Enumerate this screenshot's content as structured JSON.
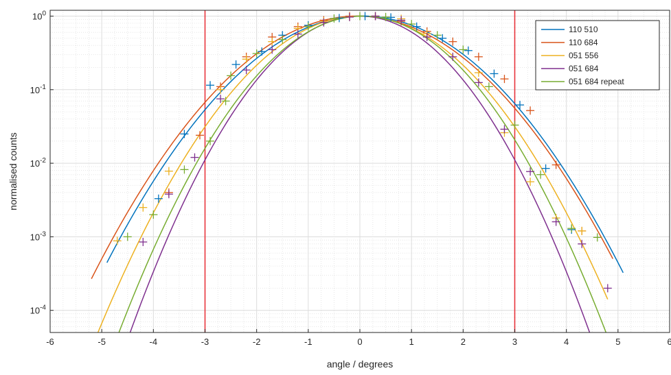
{
  "chart_data": {
    "type": "scatter",
    "xlabel": "angle / degrees",
    "ylabel": "normalised counts",
    "xlim": [
      -6,
      6
    ],
    "ylim": [
      5e-05,
      1.2
    ],
    "yscale": "log",
    "grid": true,
    "legend": "top-right",
    "x_ticks": [
      "-6",
      "-5",
      "-4",
      "-3",
      "-2",
      "-1",
      "0",
      "1",
      "2",
      "3",
      "4",
      "5",
      "6"
    ],
    "y_ticks": [
      {
        "value": 0.0001,
        "base": "10",
        "exp": "-4"
      },
      {
        "value": 0.001,
        "base": "10",
        "exp": "-3"
      },
      {
        "value": 0.01,
        "base": "10",
        "exp": "-2"
      },
      {
        "value": 0.1,
        "base": "10",
        "exp": "-1"
      },
      {
        "value": 1,
        "base": "10",
        "exp": "0"
      }
    ],
    "vlines": [
      {
        "x": -3,
        "color": "#e8333b"
      },
      {
        "x": 3,
        "color": "#e8333b"
      }
    ],
    "series": [
      {
        "name": "110 510",
        "color": "#0072bd",
        "fit": {
          "x": [
            -4.9,
            5.1
          ],
          "sigma": 1.26,
          "mu": 0.05
        },
        "points": [
          [
            -2.9,
            0.115
          ],
          [
            -2.4,
            0.22
          ],
          [
            -1.9,
            0.33
          ],
          [
            -1.5,
            0.55
          ],
          [
            -1.0,
            0.75
          ],
          [
            -0.4,
            0.94
          ],
          [
            0.1,
            1.0
          ],
          [
            0.6,
            0.96
          ],
          [
            1.1,
            0.72
          ],
          [
            1.6,
            0.5
          ],
          [
            2.1,
            0.34
          ],
          [
            2.6,
            0.165
          ],
          [
            3.1,
            0.062
          ],
          [
            3.6,
            0.0085
          ],
          [
            -3.4,
            0.025
          ],
          [
            -3.9,
            0.0033
          ],
          [
            4.1,
            0.00125
          ]
        ]
      },
      {
        "name": "110 684",
        "color": "#d95319",
        "fit": {
          "x": [
            -5.2,
            4.9
          ],
          "sigma": 1.27,
          "mu": -0.05
        },
        "points": [
          [
            -3.1,
            0.024
          ],
          [
            -2.7,
            0.11
          ],
          [
            -2.2,
            0.28
          ],
          [
            -1.7,
            0.52
          ],
          [
            -1.2,
            0.72
          ],
          [
            -0.7,
            0.88
          ],
          [
            -0.2,
            1.0
          ],
          [
            0.3,
            1.0
          ],
          [
            0.8,
            0.85
          ],
          [
            1.3,
            0.62
          ],
          [
            1.8,
            0.45
          ],
          [
            2.3,
            0.28
          ],
          [
            2.8,
            0.14
          ],
          [
            3.3,
            0.052
          ],
          [
            3.8,
            0.0095
          ],
          [
            4.3,
            0.0012
          ],
          [
            -3.7,
            0.004
          ]
        ]
      },
      {
        "name": "051 556",
        "color": "#edb120",
        "fit": {
          "x": [
            -5.2,
            4.8
          ],
          "sigma": 1.14,
          "mu": 0.0
        },
        "points": [
          [
            -4.7,
            0.00088
          ],
          [
            -4.2,
            0.0025
          ],
          [
            -3.7,
            0.0078
          ],
          [
            -2.7,
            0.1
          ],
          [
            -2.2,
            0.26
          ],
          [
            -1.7,
            0.45
          ],
          [
            -1.2,
            0.68
          ],
          [
            -0.7,
            0.85
          ],
          [
            -0.2,
            0.98
          ],
          [
            0.3,
            1.0
          ],
          [
            0.8,
            0.92
          ],
          [
            1.3,
            0.58
          ],
          [
            2.3,
            0.17
          ],
          [
            2.8,
            0.026
          ],
          [
            3.3,
            0.0056
          ],
          [
            3.8,
            0.0018
          ],
          [
            4.3,
            0.0012
          ]
        ]
      },
      {
        "name": "051 684",
        "color": "#7e2f8e",
        "fit": {
          "x": [
            -5.9,
            4.8
          ],
          "sigma": 1.0,
          "mu": 0.0
        },
        "points": [
          [
            -4.2,
            0.00085
          ],
          [
            -3.7,
            0.0038
          ],
          [
            -3.2,
            0.012
          ],
          [
            -2.7,
            0.075
          ],
          [
            -2.2,
            0.185
          ],
          [
            -1.7,
            0.35
          ],
          [
            -1.2,
            0.57
          ],
          [
            -0.7,
            0.82
          ],
          [
            -0.2,
            0.97
          ],
          [
            0.3,
            1.0
          ],
          [
            0.8,
            0.88
          ],
          [
            1.3,
            0.52
          ],
          [
            1.8,
            0.28
          ],
          [
            2.3,
            0.125
          ],
          [
            2.8,
            0.029
          ],
          [
            3.3,
            0.0077
          ],
          [
            3.8,
            0.0016
          ],
          [
            4.3,
            0.0008
          ],
          [
            4.8,
            0.0002
          ]
        ]
      },
      {
        "name": "051 684 repeat",
        "color": "#77ac30",
        "fit": {
          "x": [
            -5.0,
            5.1
          ],
          "sigma": 1.06,
          "mu": 0.05
        },
        "points": [
          [
            -4.5,
            0.001
          ],
          [
            -4.0,
            0.002
          ],
          [
            -3.4,
            0.0082
          ],
          [
            -2.9,
            0.02
          ],
          [
            -2.6,
            0.07
          ],
          [
            -2.5,
            0.155
          ],
          [
            -2.0,
            0.31
          ],
          [
            -1.5,
            0.48
          ],
          [
            -1.0,
            0.72
          ],
          [
            -0.5,
            0.93
          ],
          [
            0.0,
            1.0
          ],
          [
            0.5,
            0.97
          ],
          [
            1.0,
            0.78
          ],
          [
            1.5,
            0.55
          ],
          [
            2.0,
            0.35
          ],
          [
            2.5,
            0.11
          ],
          [
            3.0,
            0.033
          ],
          [
            3.5,
            0.007
          ],
          [
            4.1,
            0.0013
          ],
          [
            4.6,
            0.00098
          ]
        ]
      }
    ]
  }
}
